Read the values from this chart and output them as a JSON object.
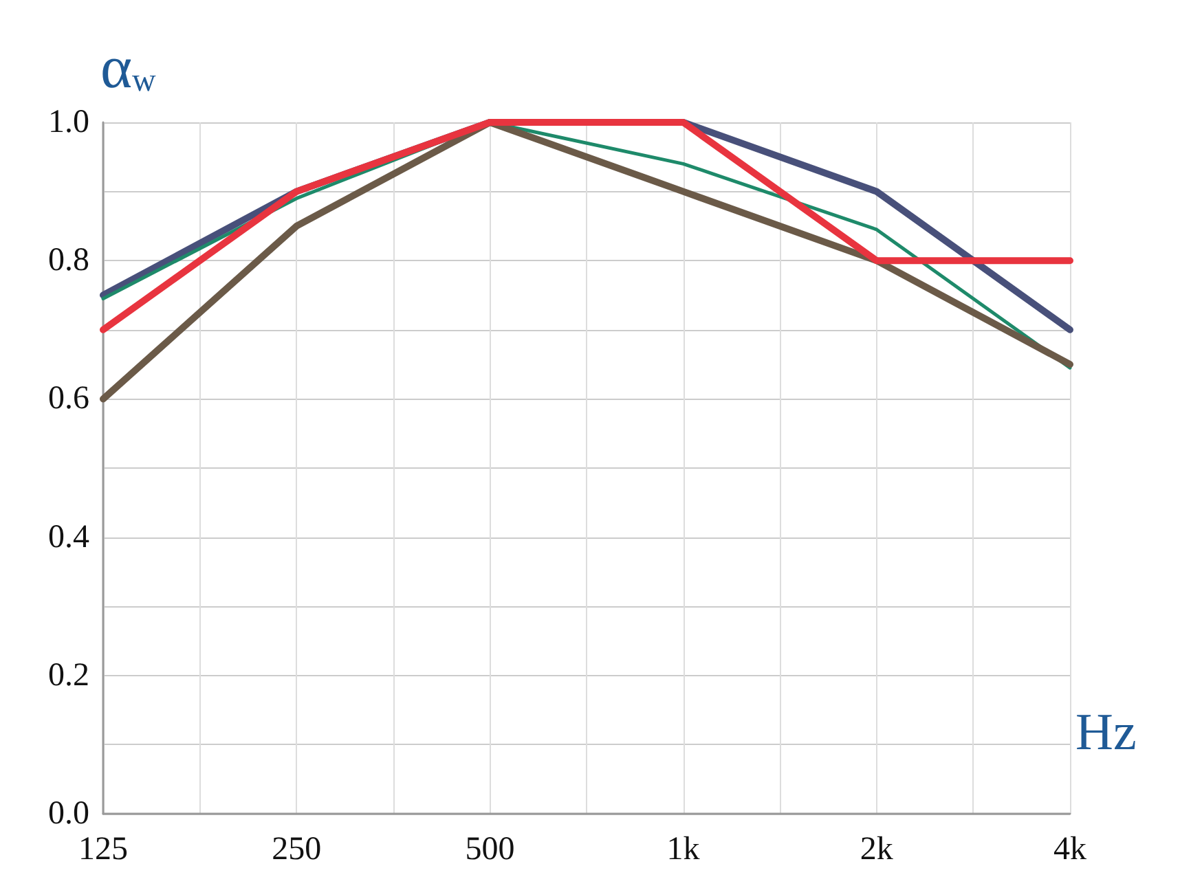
{
  "chart_data": {
    "type": "line",
    "xlabel": "Hz",
    "ylabel": "α$_{w}$",
    "categories": [
      "125",
      "250",
      "500",
      "1k",
      "2k",
      "4k"
    ],
    "series": [
      {
        "color": "#48507a",
        "values": [
          0.75,
          0.9,
          1.0,
          1.0,
          0.9,
          0.7
        ]
      },
      {
        "color": "#1e8a6a",
        "values": [
          0.745,
          0.89,
          1.0,
          0.94,
          0.845,
          0.645
        ]
      },
      {
        "color": "#6b5a48",
        "values": [
          0.6,
          0.85,
          1.0,
          0.9,
          0.8,
          0.65
        ]
      },
      {
        "color": "#e8343f",
        "values": [
          0.7,
          0.9,
          1.0,
          1.0,
          0.8,
          0.8
        ]
      }
    ],
    "ylim": [
      0,
      1
    ],
    "yticks": [
      {
        "value": 0,
        "label": "0.0"
      },
      {
        "value": 0.1,
        "label": null
      },
      0.2,
      {
        "value": 0.3,
        "label": null
      },
      0.4,
      {
        "value": 0.5,
        "label": null
      },
      0.6,
      {
        "value": 0.7,
        "label": null
      },
      0.8,
      {
        "value": 0.9,
        "label": null
      },
      {
        "value": 1,
        "label": "1.0"
      }
    ],
    "grid": true,
    "marker": "none",
    "line_style": "solid"
  }
}
